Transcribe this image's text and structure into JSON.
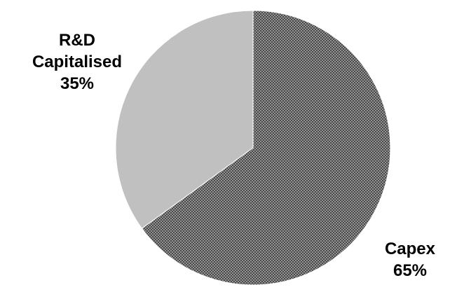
{
  "chart_data": {
    "type": "pie",
    "slices": [
      {
        "label_lines": [
          "Capex"
        ],
        "value": 65,
        "percent_label": "65%",
        "pattern": "crosshatch",
        "color": "#8c8c8c"
      },
      {
        "label_lines": [
          "R&D",
          "Capitalised"
        ],
        "value": 35,
        "percent_label": "35%",
        "pattern": "solid",
        "color": "#c0c0c0"
      }
    ],
    "start_angle_deg": 0,
    "direction": "clockwise",
    "legend": "none"
  }
}
